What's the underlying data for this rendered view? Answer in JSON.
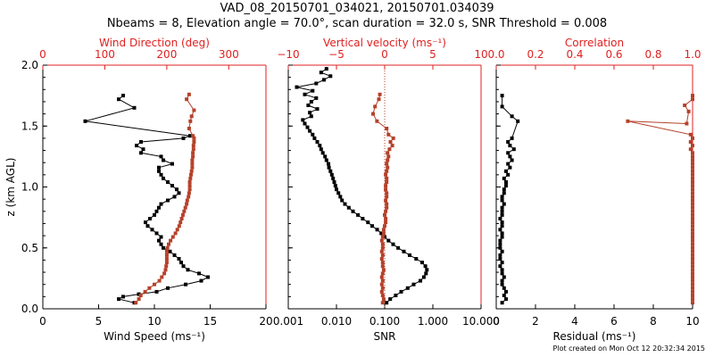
{
  "title_line1": "VAD_08_20150701_034021, 20150701.034039",
  "title_line2": "Nbeams = 8, Elevation angle = 70.0°, scan duration = 32.0 s, SNR Threshold = 0.008",
  "footer": "Plot created on Mon Oct 12 20:32:34 2015",
  "colors": {
    "black_series": "#000000",
    "red_series": "#b5412a",
    "top_axis": "#e02020"
  },
  "chart_data": [
    {
      "type": "line",
      "name": "wind",
      "ylabel": "z (km AGL)",
      "ylim": [
        0,
        2.0
      ],
      "y_ticks": [
        0.0,
        0.5,
        1.0,
        1.5,
        2.0
      ],
      "y_tick_labels": [
        "0.0",
        "0.5",
        "1.0",
        "1.5",
        "2.0"
      ],
      "bottom_axis": {
        "label": "Wind Speed (ms⁻¹)",
        "range": [
          0,
          20
        ],
        "ticks": [
          0,
          5,
          10,
          15,
          20
        ],
        "tick_labels": [
          "0",
          "5",
          "10",
          "15",
          "20"
        ]
      },
      "top_axis": {
        "label": "Wind Direction (deg)",
        "range": [
          0,
          360
        ],
        "ticks": [
          0,
          100,
          200,
          300
        ],
        "tick_labels": [
          "0",
          "100",
          "200",
          "300"
        ]
      },
      "series": [
        {
          "key": "wind_speed",
          "axis": "bottom",
          "y": [
            0.05,
            0.08,
            0.1,
            0.12,
            0.14,
            0.17,
            0.2,
            0.23,
            0.26,
            0.29,
            0.32,
            0.35,
            0.38,
            0.41,
            0.44,
            0.47,
            0.5,
            0.53,
            0.56,
            0.59,
            0.62,
            0.65,
            0.68,
            0.71,
            0.74,
            0.77,
            0.8,
            0.83,
            0.86,
            0.89,
            0.92,
            0.95,
            0.98,
            1.01,
            1.04,
            1.07,
            1.1,
            1.13,
            1.16,
            1.19,
            1.22,
            1.25,
            1.28,
            1.31,
            1.34,
            1.37,
            1.4,
            1.42,
            1.54,
            1.65,
            1.72,
            1.75
          ],
          "values": [
            8.2,
            6.8,
            7.2,
            8.6,
            10.2,
            11.2,
            12.8,
            14.2,
            14.8,
            14.0,
            13.0,
            12.6,
            12.4,
            12.2,
            11.8,
            11.4,
            10.8,
            10.6,
            10.4,
            10.6,
            10.2,
            9.8,
            9.4,
            9.2,
            9.6,
            10.0,
            10.2,
            10.4,
            10.6,
            11.2,
            11.8,
            12.2,
            12.0,
            11.6,
            11.2,
            10.8,
            10.6,
            10.4,
            10.4,
            11.6,
            10.8,
            10.6,
            8.8,
            9.0,
            8.4,
            8.8,
            12.6,
            13.2,
            3.8,
            8.2,
            6.8,
            7.2
          ]
        },
        {
          "key": "wind_direction",
          "axis": "top",
          "y": [
            0.05,
            0.08,
            0.11,
            0.14,
            0.17,
            0.2,
            0.23,
            0.26,
            0.29,
            0.32,
            0.35,
            0.38,
            0.41,
            0.44,
            0.47,
            0.5,
            0.53,
            0.56,
            0.59,
            0.62,
            0.65,
            0.68,
            0.71,
            0.74,
            0.77,
            0.8,
            0.83,
            0.86,
            0.89,
            0.92,
            0.95,
            0.98,
            1.01,
            1.04,
            1.07,
            1.1,
            1.13,
            1.16,
            1.19,
            1.22,
            1.25,
            1.28,
            1.31,
            1.34,
            1.37,
            1.4,
            1.42,
            1.48,
            1.54,
            1.58,
            1.63,
            1.72,
            1.76
          ],
          "values": [
            150,
            155,
            158,
            165,
            172,
            180,
            188,
            192,
            196,
            198,
            199,
            200,
            200,
            200,
            200,
            201,
            203,
            206,
            210,
            214,
            217,
            220,
            222,
            224,
            226,
            228,
            230,
            232,
            233,
            235,
            236,
            237,
            237,
            237,
            238,
            239,
            240,
            241,
            241,
            241,
            242,
            242,
            243,
            243,
            244,
            244,
            242,
            236,
            238,
            240,
            244,
            232,
            236
          ]
        }
      ]
    },
    {
      "type": "line",
      "name": "vertical_velocity_snr",
      "ylim": [
        0,
        2.0
      ],
      "bottom_axis": {
        "label": "SNR",
        "scale": "log",
        "range": [
          0.001,
          10
        ],
        "ticks": [
          0.001,
          0.01,
          0.1,
          1,
          10
        ],
        "tick_labels": [
          "0.001",
          "0.010",
          "0.100",
          "1.000",
          "10.000"
        ]
      },
      "top_axis": {
        "label": "Vertical velocity (ms⁻¹)",
        "range": [
          -10,
          10
        ],
        "ticks": [
          -10,
          -5,
          0,
          5,
          10
        ],
        "tick_labels": [
          "−10",
          "−5",
          "0",
          "5",
          "10"
        ]
      },
      "series": [
        {
          "key": "snr",
          "axis": "bottom",
          "y": [
            0.05,
            0.08,
            0.11,
            0.14,
            0.17,
            0.2,
            0.23,
            0.26,
            0.29,
            0.32,
            0.35,
            0.38,
            0.41,
            0.44,
            0.47,
            0.5,
            0.53,
            0.56,
            0.59,
            0.62,
            0.65,
            0.68,
            0.71,
            0.74,
            0.77,
            0.8,
            0.83,
            0.86,
            0.89,
            0.92,
            0.95,
            0.98,
            1.01,
            1.04,
            1.07,
            1.1,
            1.13,
            1.16,
            1.19,
            1.22,
            1.25,
            1.28,
            1.31,
            1.34,
            1.37,
            1.4,
            1.43,
            1.46,
            1.49,
            1.52,
            1.55,
            1.58,
            1.61,
            1.64,
            1.67,
            1.7,
            1.73,
            1.76,
            1.79,
            1.82,
            1.85,
            1.88,
            1.91,
            1.94,
            1.97
          ],
          "values": [
            0.11,
            0.13,
            0.17,
            0.22,
            0.3,
            0.4,
            0.55,
            0.65,
            0.72,
            0.75,
            0.7,
            0.6,
            0.45,
            0.33,
            0.25,
            0.19,
            0.15,
            0.12,
            0.1,
            0.085,
            0.07,
            0.055,
            0.045,
            0.035,
            0.028,
            0.022,
            0.018,
            0.015,
            0.013,
            0.012,
            0.011,
            0.01,
            0.0095,
            0.009,
            0.0085,
            0.008,
            0.0075,
            0.007,
            0.0068,
            0.0062,
            0.0058,
            0.0052,
            0.0048,
            0.0045,
            0.004,
            0.0035,
            0.0032,
            0.0028,
            0.0025,
            0.0022,
            0.002,
            0.003,
            0.0028,
            0.004,
            0.0026,
            0.003,
            0.0038,
            0.0022,
            0.0032,
            0.0015,
            0.0038,
            0.0055,
            0.0075,
            0.0048,
            0.0062
          ]
        },
        {
          "key": "vertical_velocity",
          "axis": "top",
          "y": [
            0.05,
            0.08,
            0.11,
            0.14,
            0.17,
            0.2,
            0.23,
            0.26,
            0.29,
            0.32,
            0.35,
            0.38,
            0.41,
            0.44,
            0.47,
            0.5,
            0.53,
            0.56,
            0.59,
            0.62,
            0.65,
            0.68,
            0.71,
            0.74,
            0.77,
            0.8,
            0.83,
            0.86,
            0.89,
            0.92,
            0.95,
            0.98,
            1.01,
            1.04,
            1.07,
            1.1,
            1.13,
            1.16,
            1.19,
            1.22,
            1.25,
            1.28,
            1.31,
            1.34,
            1.37,
            1.4,
            1.43,
            1.48,
            1.54,
            1.6,
            1.66,
            1.72,
            1.76
          ],
          "values": [
            -0.2,
            -0.1,
            -0.2,
            -0.3,
            -0.2,
            -0.3,
            -0.2,
            -0.3,
            -0.2,
            -0.1,
            -0.2,
            -0.2,
            -0.3,
            -0.2,
            -0.3,
            -0.2,
            -0.2,
            -0.3,
            -0.2,
            -0.1,
            -0.1,
            0.0,
            0.1,
            0.1,
            0.0,
            0.1,
            0.2,
            0.2,
            0.1,
            0.2,
            0.2,
            0.1,
            0.1,
            0.2,
            0.2,
            0.1,
            0.2,
            0.3,
            0.2,
            0.3,
            0.4,
            0.3,
            0.5,
            0.8,
            0.6,
            0.9,
            0.4,
            0.2,
            -0.8,
            -1.2,
            -1.0,
            -0.6,
            -0.5
          ]
        }
      ]
    },
    {
      "type": "scatter",
      "name": "residual_correlation",
      "ylim": [
        0,
        2.0
      ],
      "bottom_axis": {
        "label": "Residual (ms⁻¹)",
        "range": [
          0,
          10
        ],
        "ticks": [
          0,
          2,
          4,
          6,
          8,
          10
        ],
        "tick_labels": [
          "0",
          "2",
          "4",
          "6",
          "8",
          "10"
        ]
      },
      "top_axis": {
        "label": "Correlation",
        "range": [
          0,
          1.0
        ],
        "ticks": [
          0.0,
          0.2,
          0.4,
          0.6,
          0.8,
          1.0
        ],
        "tick_labels": [
          "0.0",
          "0.2",
          "0.4",
          "0.6",
          "0.8",
          "1.0"
        ]
      },
      "series": [
        {
          "key": "residual",
          "axis": "bottom",
          "y": [
            0.05,
            0.08,
            0.11,
            0.14,
            0.17,
            0.2,
            0.23,
            0.26,
            0.29,
            0.32,
            0.35,
            0.38,
            0.41,
            0.44,
            0.47,
            0.5,
            0.53,
            0.56,
            0.59,
            0.62,
            0.65,
            0.68,
            0.71,
            0.74,
            0.77,
            0.8,
            0.83,
            0.86,
            0.89,
            0.92,
            0.95,
            0.98,
            1.01,
            1.04,
            1.07,
            1.1,
            1.13,
            1.16,
            1.19,
            1.22,
            1.25,
            1.28,
            1.31,
            1.34,
            1.37,
            1.4,
            1.54,
            1.58,
            1.66,
            1.75
          ],
          "values": [
            0.3,
            0.5,
            0.4,
            0.5,
            0.4,
            0.3,
            0.3,
            0.4,
            0.3,
            0.3,
            0.2,
            0.3,
            0.2,
            0.2,
            0.3,
            0.2,
            0.2,
            0.2,
            0.3,
            0.3,
            0.2,
            0.3,
            0.3,
            0.2,
            0.3,
            0.3,
            0.3,
            0.4,
            0.3,
            0.3,
            0.4,
            0.4,
            0.5,
            0.5,
            0.4,
            0.6,
            0.5,
            0.7,
            0.6,
            0.8,
            0.7,
            0.6,
            0.9,
            0.7,
            0.6,
            0.8,
            1.1,
            0.8,
            0.3,
            0.3
          ]
        },
        {
          "key": "correlation",
          "axis": "top",
          "y": [
            0.05,
            0.08,
            0.11,
            0.14,
            0.17,
            0.2,
            0.23,
            0.26,
            0.29,
            0.32,
            0.35,
            0.38,
            0.41,
            0.44,
            0.47,
            0.5,
            0.53,
            0.56,
            0.59,
            0.62,
            0.65,
            0.68,
            0.71,
            0.74,
            0.77,
            0.8,
            0.83,
            0.86,
            0.89,
            0.92,
            0.95,
            0.98,
            1.01,
            1.04,
            1.07,
            1.1,
            1.13,
            1.16,
            1.19,
            1.22,
            1.25,
            1.28,
            1.31,
            1.34,
            1.37,
            1.4,
            1.43,
            1.54,
            1.52,
            1.62,
            1.67,
            1.72,
            1.75
          ],
          "values": [
            1.0,
            1.0,
            1.0,
            1.0,
            1.0,
            1.0,
            1.0,
            1.0,
            1.0,
            1.0,
            1.0,
            1.0,
            1.0,
            1.0,
            1.0,
            1.0,
            1.0,
            1.0,
            1.0,
            1.0,
            1.0,
            1.0,
            1.0,
            1.0,
            1.0,
            1.0,
            1.0,
            1.0,
            1.0,
            1.0,
            1.0,
            1.0,
            1.0,
            1.0,
            1.0,
            1.0,
            1.0,
            1.0,
            1.0,
            1.0,
            1.0,
            1.0,
            0.99,
            1.0,
            0.99,
            1.0,
            0.99,
            0.67,
            0.97,
            0.98,
            0.96,
            1.0,
            1.0
          ]
        }
      ]
    }
  ]
}
